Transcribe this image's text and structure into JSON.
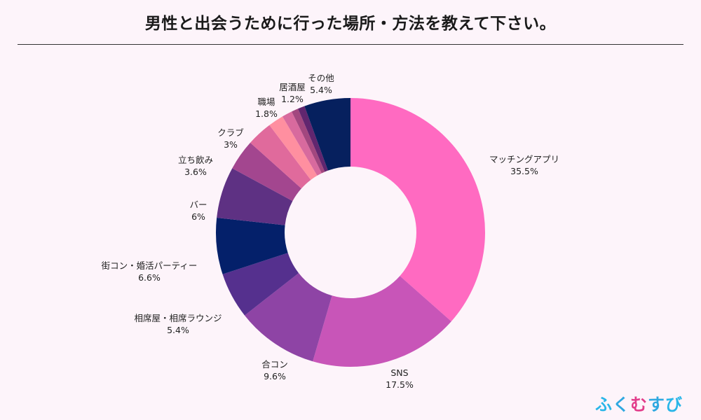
{
  "page": {
    "title": "男性と出会うために行った場所・方法を教えて下さい。"
  },
  "brand": {
    "chars": [
      "ふ",
      "く",
      "む",
      "す",
      "び"
    ]
  },
  "chart_data": {
    "type": "pie",
    "variant": "donut",
    "title": "男性と出会うために行った場所・方法を教えて下さい。",
    "start": "12 o'clock, clockwise",
    "slices": [
      {
        "label": "マッチングアプリ",
        "value": 35.5,
        "display": "35.5%",
        "color": "#ff6ac1"
      },
      {
        "label": "SNS",
        "value": 17.5,
        "display": "17.5%",
        "color": "#c855b8"
      },
      {
        "label": "合コン",
        "value": 9.6,
        "display": "9.6%",
        "color": "#8e44a5"
      },
      {
        "label": "相席屋・相席ラウンジ",
        "value": 5.4,
        "display": "5.4%",
        "color": "#55308e"
      },
      {
        "label": "街コン・婚活パーティー",
        "value": 6.6,
        "display": "6.6%",
        "color": "#04206a"
      },
      {
        "label": "バー",
        "value": 6,
        "display": "6%",
        "color": "#5e3183"
      },
      {
        "label": "立ち飲み",
        "value": 3.6,
        "display": "3.6%",
        "color": "#a3468f"
      },
      {
        "label": "クラブ",
        "value": 3,
        "display": "3%",
        "color": "#e06a9c"
      },
      {
        "label": "職場",
        "value": 1.8,
        "display": "1.8%",
        "color": "#ff8fa0"
      },
      {
        "label": "居酒屋",
        "value": 1.2,
        "display": "1.2%",
        "color": "#d86a9e"
      },
      {
        "label": "その他",
        "value": 5.4,
        "display": "5.4%",
        "color": "#06205e"
      }
    ],
    "extra_thin_slices": [
      {
        "color": "#a2477f"
      },
      {
        "color": "#61266f"
      }
    ]
  }
}
